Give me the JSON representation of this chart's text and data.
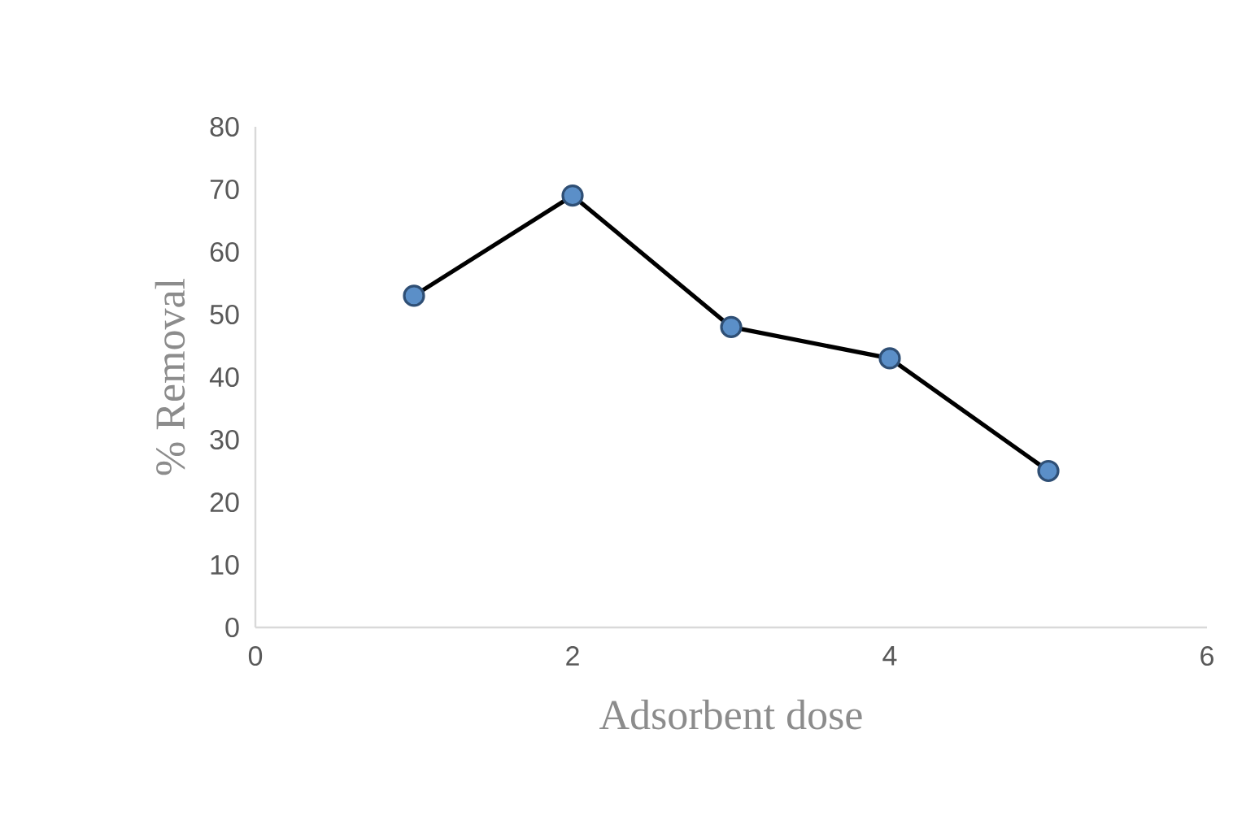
{
  "chart_data": {
    "type": "line",
    "xlabel": "Adsorbent dose",
    "ylabel": "% Removal",
    "x": [
      1,
      2,
      3,
      4,
      5
    ],
    "series": [
      {
        "color": "#000000",
        "values": [
          53,
          69,
          48,
          43,
          25
        ]
      }
    ],
    "xlim": [
      0,
      6
    ],
    "xticks": [
      0,
      2,
      4,
      6
    ],
    "ylim": [
      0,
      80
    ],
    "yticks": [
      0,
      10,
      20,
      30,
      40,
      50,
      60,
      70,
      80
    ],
    "marker": "circle",
    "line_style": "solid",
    "grid": false,
    "legend": false
  }
}
